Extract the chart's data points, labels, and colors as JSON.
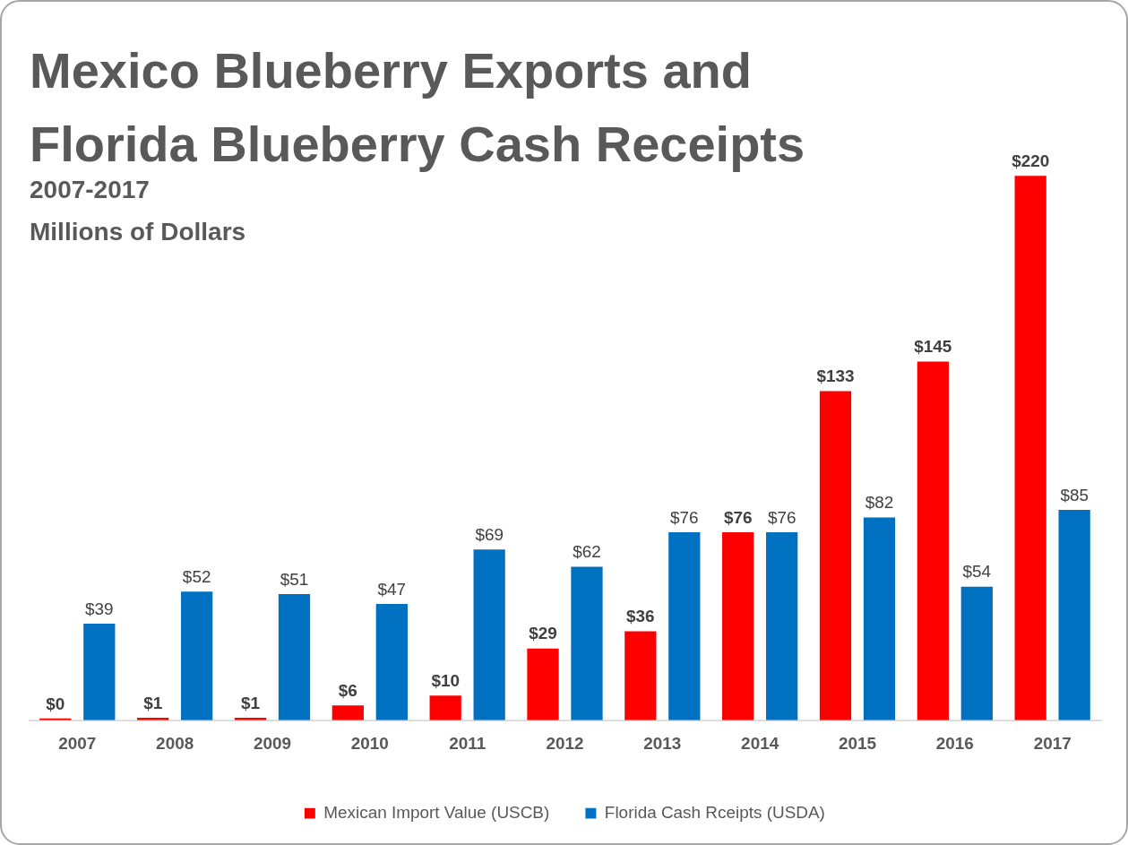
{
  "chart_data": {
    "type": "bar",
    "title": "Mexico Blueberry Exports and Florida Blueberry Cash Receipts",
    "subtitle": "2007-2017",
    "annotations": [
      "Millions of Dollars"
    ],
    "categories": [
      "2007",
      "2008",
      "2009",
      "2010",
      "2011",
      "2012",
      "2013",
      "2014",
      "2015",
      "2016",
      "2017"
    ],
    "series": [
      {
        "name": "Mexican Import Value (USCB)",
        "color": "#ff0000",
        "values": [
          0,
          1,
          1,
          6,
          10,
          29,
          36,
          76,
          133,
          145,
          220
        ],
        "value_labels": [
          "$0",
          "$1",
          "$1",
          "$6",
          "$10",
          "$29",
          "$36",
          "$76",
          "$133",
          "$145",
          "$220"
        ]
      },
      {
        "name": "Florida Cash Rceipts (USDA)",
        "color": "#0070c0",
        "values": [
          39,
          52,
          51,
          47,
          69,
          62,
          76,
          76,
          82,
          54,
          85
        ],
        "value_labels": [
          "$39",
          "$52",
          "$51",
          "$47",
          "$69",
          "$62",
          "$76",
          "$76",
          "$82",
          "$54",
          "$85"
        ]
      }
    ],
    "legend": "bottom",
    "grid": false
  }
}
